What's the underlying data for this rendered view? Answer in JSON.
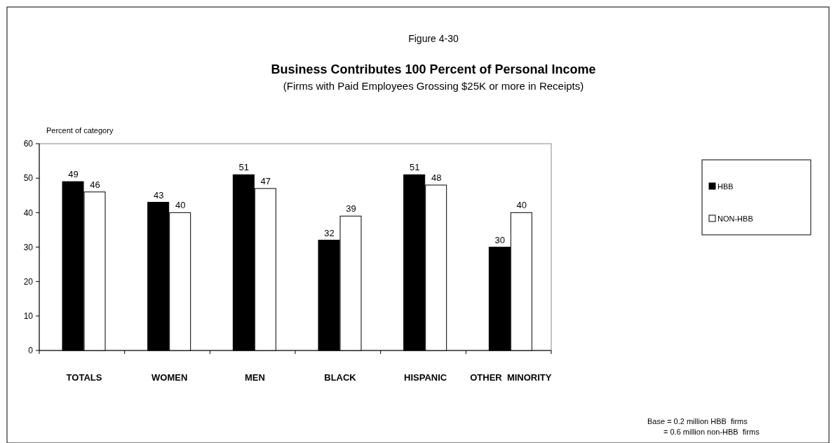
{
  "chart_data": {
    "type": "bar",
    "title": "Business Contributes 100 Percent of Personal Income",
    "subtitle": "(Firms with Paid Employees Grossing $25K or more in Receipts)",
    "ylabel": "Percent of category",
    "annotations": [
      "Figure 4-30",
      "Base = 0.2 million HBB  firms",
      "= 0.6 million non-HBB  firms"
    ],
    "categories": [
      "TOTALS",
      "WOMEN",
      "MEN",
      "BLACK",
      "HISPANIC",
      "OTHER  MINORITY"
    ],
    "series": [
      {
        "name": "HBB",
        "color": "#000000",
        "values": [
          49,
          43,
          51,
          32,
          51,
          30
        ]
      },
      {
        "name": "NON-HBB",
        "color": "#ffffff",
        "values": [
          46,
          40,
          47,
          39,
          48,
          40
        ]
      }
    ],
    "ylim": [
      0,
      60
    ],
    "yticks": [
      0,
      10,
      20,
      30,
      40,
      50,
      60
    ],
    "data_labels": true,
    "legend": "right",
    "grid": false
  }
}
